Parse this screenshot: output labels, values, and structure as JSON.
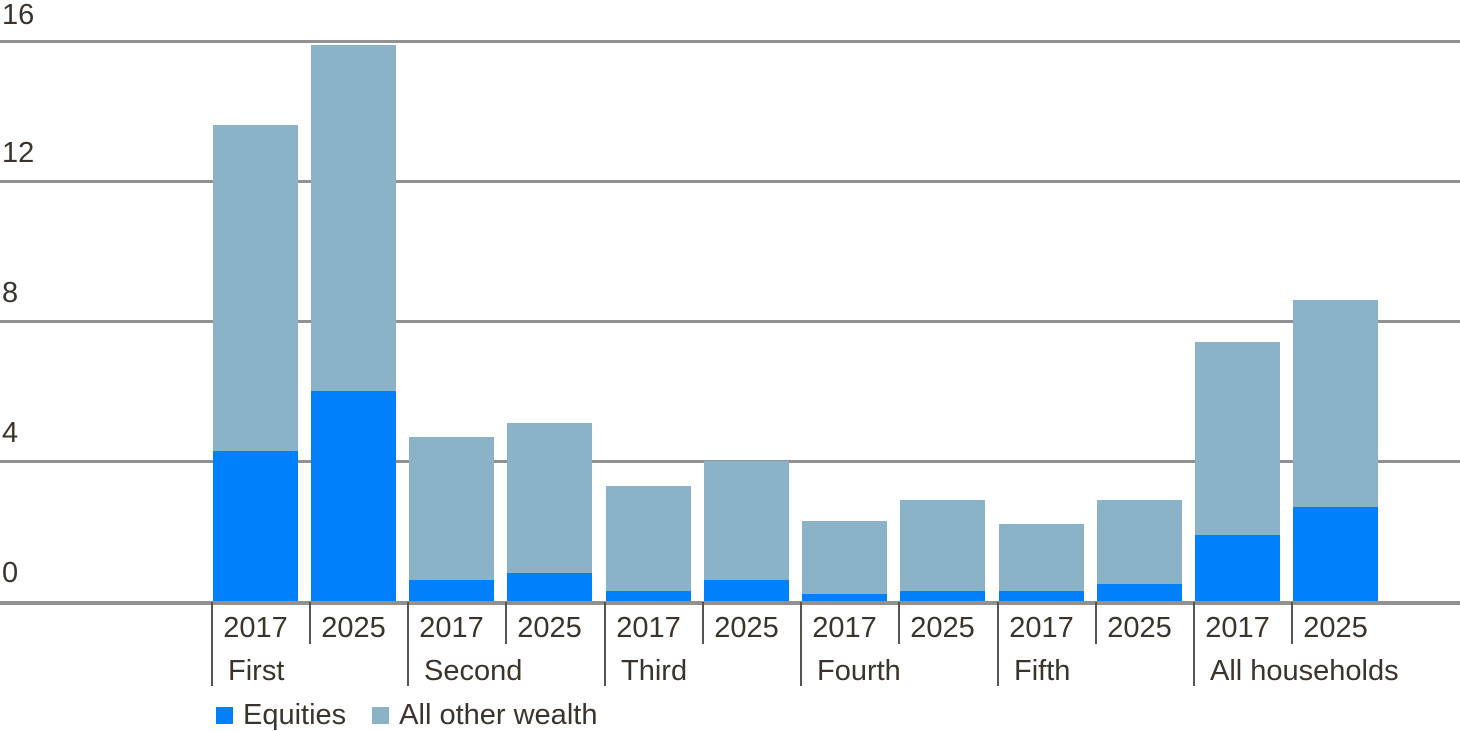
{
  "chart_data": {
    "type": "bar",
    "stacked": true,
    "categories_groups": [
      "First",
      "Second",
      "Third",
      "Fourth",
      "Fifth",
      "All households"
    ],
    "categories_years": [
      "2017",
      "2025"
    ],
    "series": [
      {
        "name": "Equities",
        "color": "#0080fb",
        "values": [
          4.3,
          6.0,
          0.6,
          0.8,
          0.3,
          0.6,
          0.2,
          0.3,
          0.3,
          0.5,
          1.9,
          2.7
        ]
      },
      {
        "name": "All other wealth",
        "color": "#8ab3c8",
        "values": [
          9.3,
          9.9,
          4.1,
          4.3,
          3.0,
          3.4,
          2.1,
          2.6,
          1.9,
          2.4,
          5.5,
          5.9
        ]
      }
    ],
    "stacked_totals": [
      13.6,
      15.9,
      4.7,
      5.1,
      3.3,
      4.0,
      2.3,
      2.9,
      2.2,
      2.9,
      7.4,
      8.6
    ],
    "y_ticks": [
      0,
      4,
      8,
      12,
      16
    ],
    "ylim": [
      0,
      16.6
    ],
    "grid": true,
    "legend_position": "bottom-left",
    "colors": {
      "gridline": "#919191",
      "axis_separator": "#57534e",
      "text": "#3b342d",
      "background": "#ffffff"
    }
  }
}
